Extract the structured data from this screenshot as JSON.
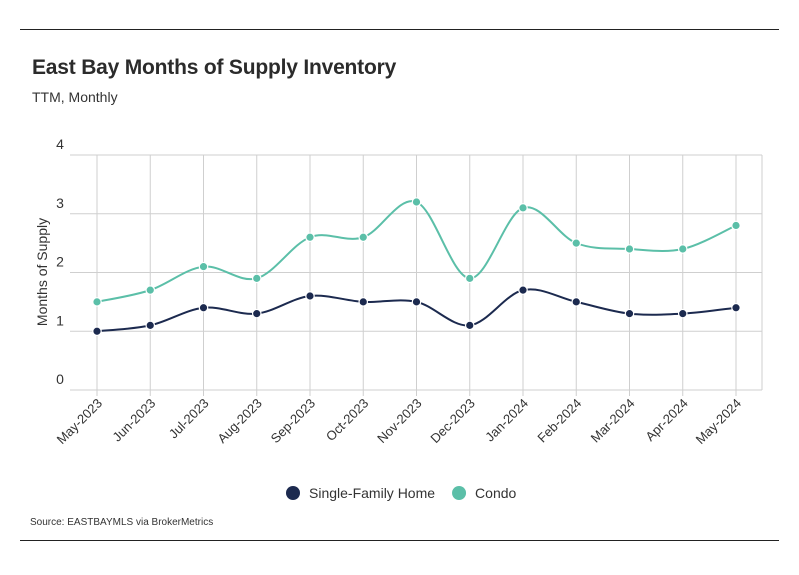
{
  "header": {
    "title": "East Bay Months of Supply Inventory",
    "subtitle": "TTM, Monthly"
  },
  "footer": {
    "source": "Source:  EASTBAYMLS via BrokerMetrics"
  },
  "chart_data": {
    "type": "line",
    "categories": [
      "May-2023",
      "Jun-2023",
      "Jul-2023",
      "Aug-2023",
      "Sep-2023",
      "Oct-2023",
      "Nov-2023",
      "Dec-2023",
      "Jan-2024",
      "Feb-2024",
      "Mar-2024",
      "Apr-2024",
      "May-2024"
    ],
    "series": [
      {
        "name": "Single-Family Home",
        "color": "#1c2a4f",
        "values": [
          1.0,
          1.1,
          1.4,
          1.3,
          1.6,
          1.5,
          1.5,
          1.1,
          1.7,
          1.5,
          1.3,
          1.3,
          1.4
        ]
      },
      {
        "name": "Condo",
        "color": "#5bbfa8",
        "values": [
          1.5,
          1.7,
          2.1,
          1.9,
          2.6,
          2.6,
          3.2,
          1.9,
          3.1,
          2.5,
          2.4,
          2.4,
          2.8
        ]
      }
    ],
    "ylabel": "Months of Supply",
    "xlabel": "",
    "ylim": [
      0,
      4
    ],
    "yticks": [
      "0",
      "1",
      "2",
      "3",
      "4"
    ],
    "grid": true,
    "line_style": "smooth",
    "legend_position": "bottom-center"
  }
}
